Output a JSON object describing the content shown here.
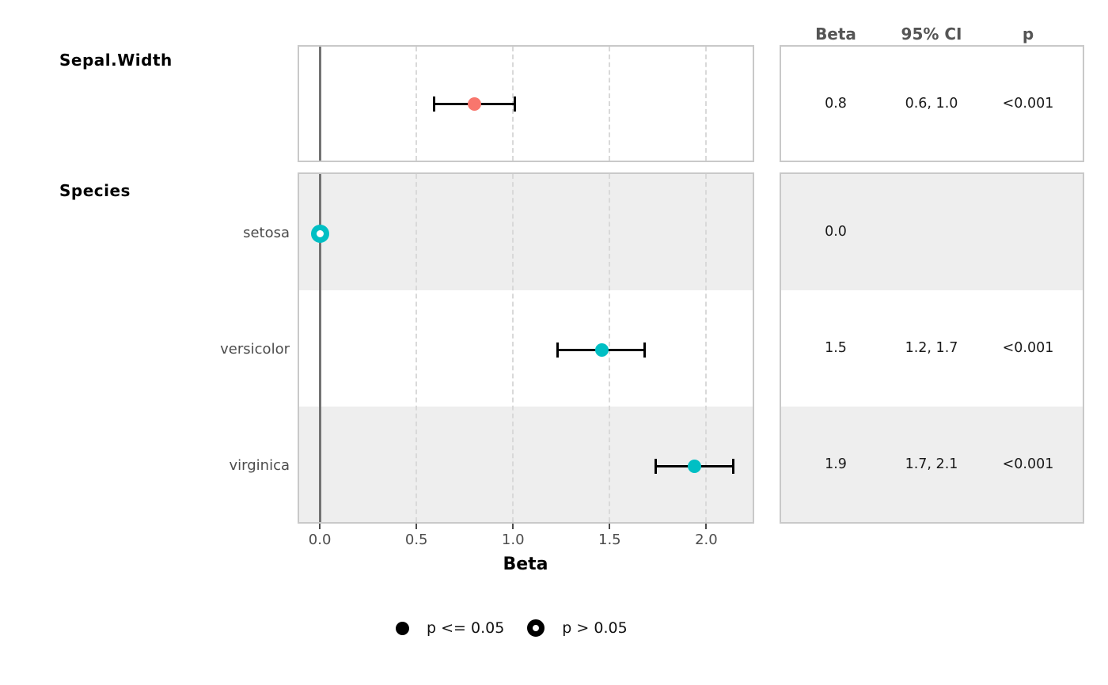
{
  "chart_data": {
    "type": "scatter",
    "subtype": "forest-plot",
    "title": "",
    "xlabel": "Beta",
    "xlim": [
      -0.107,
      2.24
    ],
    "grid": "dashed-vertical-at-ticks",
    "zero_reference_line": 0.0,
    "x_ticks": [
      {
        "value": 0.0,
        "label": "0.0"
      },
      {
        "value": 0.5,
        "label": "0.5"
      },
      {
        "value": 1.0,
        "label": "1.0"
      },
      {
        "value": 1.5,
        "label": "1.5"
      },
      {
        "value": 2.0,
        "label": "2.0"
      }
    ],
    "rows": [
      {
        "group": "Sepal.Width",
        "label": "",
        "estimate": 0.8,
        "ci_low": 0.59,
        "ci_high": 1.01,
        "p": "<0.001",
        "color": "#F8766D",
        "significant": true
      },
      {
        "group": "Species",
        "label": "setosa",
        "estimate": 0.0,
        "ci_low": null,
        "ci_high": null,
        "p": null,
        "color": "#00BFC4",
        "significant": false
      },
      {
        "group": "Species",
        "label": "versicolor",
        "estimate": 1.46,
        "ci_low": 1.23,
        "ci_high": 1.68,
        "p": "<0.001",
        "color": "#00BFC4",
        "significant": true
      },
      {
        "group": "Species",
        "label": "virginica",
        "estimate": 1.94,
        "ci_low": 1.74,
        "ci_high": 2.14,
        "p": "<0.001",
        "color": "#00BFC4",
        "significant": true
      }
    ],
    "legend": {
      "position": "bottom",
      "items": [
        {
          "label": "p <= 0.05",
          "shape": "filled-circle"
        },
        {
          "label": "p > 0.05",
          "shape": "open-circle"
        }
      ]
    }
  },
  "table": {
    "headers": [
      "Beta",
      "95% CI",
      "p"
    ],
    "rows": [
      [
        "0.8",
        "0.6, 1.0",
        "<0.001"
      ],
      [
        "0.0",
        "",
        ""
      ],
      [
        "1.5",
        "1.2, 1.7",
        "<0.001"
      ],
      [
        "1.9",
        "1.7, 2.1",
        "<0.001"
      ]
    ]
  },
  "colors": {
    "significant_point_red": "#F8766D",
    "species_point_teal": "#00BFC4",
    "errorbar": "#000000",
    "zero_line": "#737373",
    "gridline": "#d9d9d9",
    "panel_border": "#c9c9c9",
    "stripe_gray": "#eeeeee",
    "header_text": "#555555",
    "axis_text": "#4d4d4d"
  }
}
